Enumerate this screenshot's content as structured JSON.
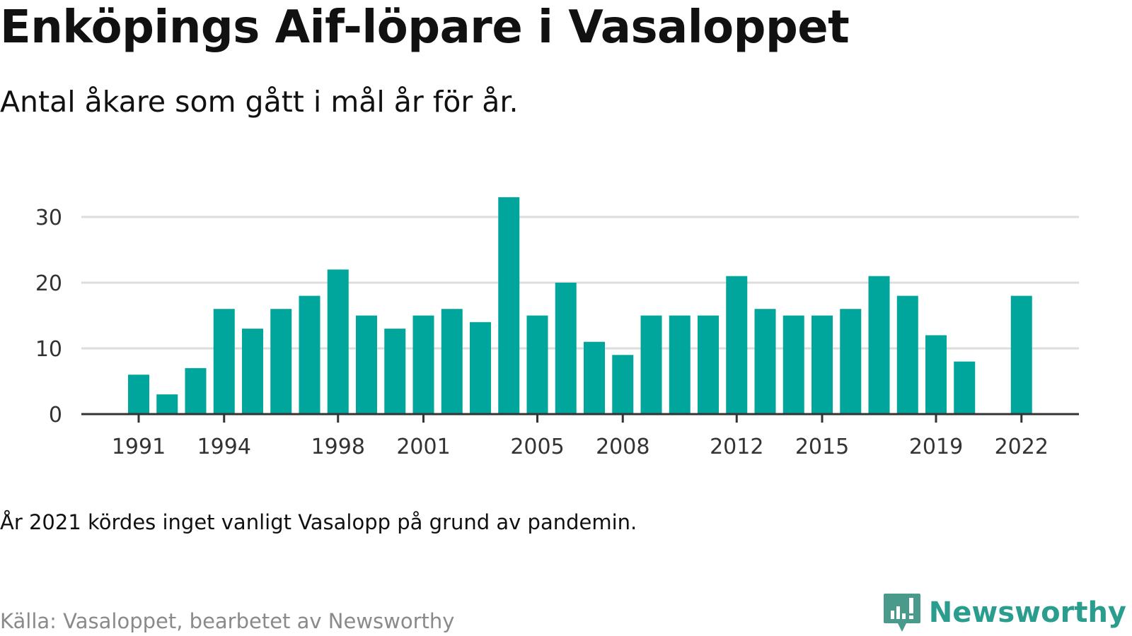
{
  "title": "Enköpings Aif-löpare i Vasaloppet",
  "subtitle": "Antal åkare som gått i mål år för år.",
  "note": "År 2021 kördes inget vanligt Vasalopp på grund av pandemin.",
  "source": "Källa: Vasaloppet, bearbetet av Newsworthy",
  "brand": {
    "name": "Newsworthy",
    "icon": "newsworthy-logo-icon",
    "color": "#4a9a8c"
  },
  "chart_data": {
    "type": "bar",
    "title": "Enköpings Aif-löpare i Vasaloppet",
    "subtitle": "Antal åkare som gått i mål år för år.",
    "xlabel": "",
    "ylabel": "",
    "categories": [
      1991,
      1992,
      1993,
      1994,
      1995,
      1996,
      1997,
      1998,
      1999,
      2000,
      2001,
      2002,
      2003,
      2004,
      2005,
      2006,
      2007,
      2008,
      2009,
      2010,
      2011,
      2012,
      2013,
      2014,
      2015,
      2016,
      2017,
      2018,
      2019,
      2020,
      2021,
      2022
    ],
    "values": [
      6,
      3,
      7,
      16,
      13,
      16,
      18,
      22,
      15,
      13,
      15,
      16,
      14,
      33,
      15,
      20,
      11,
      9,
      15,
      15,
      15,
      21,
      16,
      15,
      15,
      16,
      21,
      18,
      12,
      8,
      null,
      18
    ],
    "x_tick_labels": [
      "1991",
      "1994",
      "1998",
      "2001",
      "2005",
      "2008",
      "2012",
      "2015",
      "2019",
      "2022"
    ],
    "y_ticks": [
      0,
      10,
      20,
      30
    ],
    "ylim": [
      0,
      35
    ],
    "grid": true,
    "bar_color": "#00a69c",
    "grid_color": "#dddddd",
    "axis_color": "#333333"
  }
}
